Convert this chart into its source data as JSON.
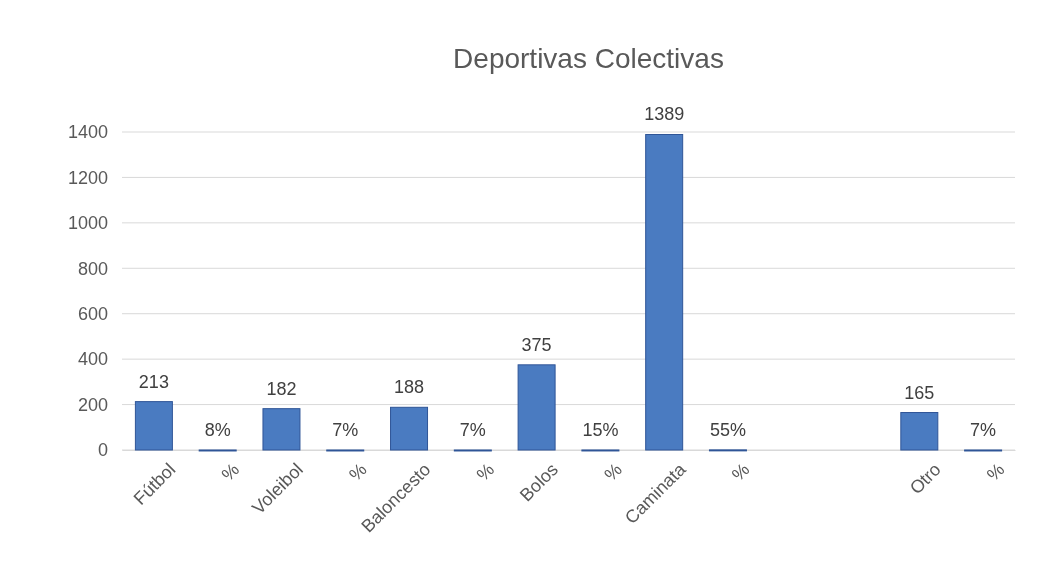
{
  "chart_data": {
    "type": "bar",
    "title": "Deportivas Colectivas",
    "categories": [
      "Fútbol",
      "%",
      "Voleibol",
      "%",
      "Baloncesto",
      "%",
      "Bolos",
      "%",
      "Caminata",
      "%",
      null,
      null,
      "Otro",
      "%"
    ],
    "values": [
      213,
      0.08,
      182,
      0.07,
      188,
      0.07,
      375,
      0.15,
      1389,
      0.55,
      null,
      null,
      165,
      0.07
    ],
    "value_labels": [
      "213",
      "8%",
      "182",
      "7%",
      "188",
      "7%",
      "375",
      "15%",
      "1389",
      "55%",
      null,
      null,
      "165",
      "7%"
    ],
    "color": "#4a7bc1",
    "ylim": [
      0,
      1400
    ],
    "yticks": [
      0,
      200,
      400,
      600,
      800,
      1000,
      1200,
      1400
    ],
    "grid": "y"
  }
}
